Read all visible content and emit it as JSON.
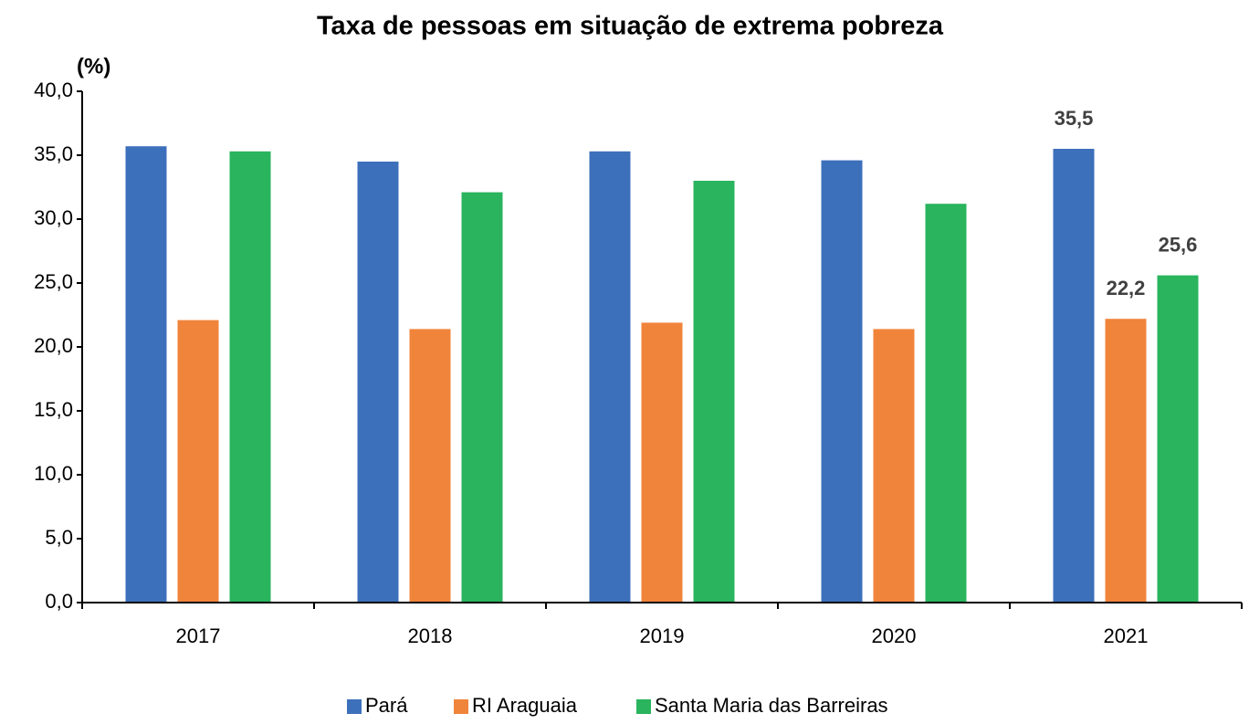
{
  "chart_data": {
    "type": "bar",
    "title": "Taxa de pessoas em situação de extrema pobreza",
    "y_label": "(%)",
    "categories": [
      "2017",
      "2018",
      "2019",
      "2020",
      "2021"
    ],
    "series": [
      {
        "name": "Pará",
        "color": "#3d70bb",
        "values": [
          35.7,
          34.5,
          35.3,
          34.6,
          35.5
        ],
        "value_labels": [
          null,
          null,
          null,
          null,
          "35,5"
        ]
      },
      {
        "name": "RI Araguaia",
        "color": "#f0843b",
        "values": [
          22.1,
          21.4,
          21.9,
          21.4,
          22.2
        ],
        "value_labels": [
          null,
          null,
          null,
          null,
          "22,2"
        ]
      },
      {
        "name": "Santa Maria das Barreiras",
        "color": "#29b45d",
        "values": [
          35.3,
          32.1,
          33.0,
          31.2,
          25.6
        ],
        "value_labels": [
          null,
          null,
          null,
          null,
          "25,6"
        ]
      }
    ],
    "ylim": [
      0,
      40
    ],
    "yticks": [
      {
        "value": 0,
        "label": "0,0"
      },
      {
        "value": 5,
        "label": "5,0"
      },
      {
        "value": 10,
        "label": "10,0"
      },
      {
        "value": 15,
        "label": "15,0"
      },
      {
        "value": 20,
        "label": "20,0"
      },
      {
        "value": 25,
        "label": "25,0"
      },
      {
        "value": 30,
        "label": "30,0"
      },
      {
        "value": 35,
        "label": "35,0"
      },
      {
        "value": 40,
        "label": "40,0"
      }
    ],
    "grid": false,
    "legend": "bottom"
  }
}
